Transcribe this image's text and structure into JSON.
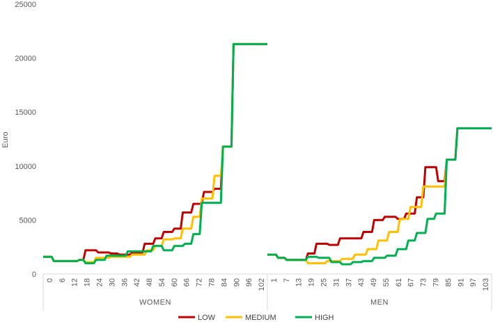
{
  "chart_data": {
    "type": "line",
    "ylabel": "Euro",
    "ylim": [
      0,
      25000
    ],
    "yticks": [
      0,
      5000,
      10000,
      15000,
      20000,
      25000
    ],
    "y_tick_labels": [
      "0",
      "5000",
      "10000",
      "15000",
      "20000",
      "25000"
    ],
    "grid": false,
    "legend_position": "bottom",
    "groups": [
      {
        "name": "WOMEN",
        "x_range": [
          0,
          106
        ],
        "x_tick_labels": [
          "0",
          "6",
          "12",
          "18",
          "24",
          "30",
          "36",
          "42",
          "48",
          "54",
          "60",
          "66",
          "72",
          "78",
          "84",
          "90",
          "96",
          "102"
        ],
        "series": [
          {
            "name": "LOW",
            "points": [
              [
                0,
                1600
              ],
              [
                4,
                1600
              ],
              [
                5,
                1200
              ],
              [
                16,
                1200
              ],
              [
                17,
                1300
              ],
              [
                19,
                1300
              ],
              [
                20,
                2200
              ],
              [
                25,
                2200
              ],
              [
                26,
                2000
              ],
              [
                31,
                2000
              ],
              [
                32,
                1900
              ],
              [
                35,
                1900
              ],
              [
                36,
                1800
              ],
              [
                41,
                1800
              ],
              [
                42,
                2000
              ],
              [
                47,
                2000
              ],
              [
                48,
                2800
              ],
              [
                52,
                2800
              ],
              [
                53,
                3300
              ],
              [
                56,
                3300
              ],
              [
                57,
                3900
              ],
              [
                61,
                3900
              ],
              [
                62,
                4200
              ],
              [
                65,
                4200
              ],
              [
                66,
                5700
              ],
              [
                70,
                5700
              ],
              [
                71,
                6500
              ],
              [
                75,
                6500
              ],
              [
                76,
                7600
              ],
              [
                80,
                7600
              ],
              [
                81,
                7900
              ],
              [
                84,
                7900
              ],
              [
                85,
                11800
              ],
              [
                89,
                11800
              ],
              [
                90,
                21300
              ],
              [
                106,
                21300
              ]
            ]
          },
          {
            "name": "MEDIUM",
            "points": [
              [
                0,
                1600
              ],
              [
                4,
                1600
              ],
              [
                5,
                1200
              ],
              [
                16,
                1200
              ],
              [
                17,
                1300
              ],
              [
                19,
                1300
              ],
              [
                20,
                1100
              ],
              [
                24,
                1100
              ],
              [
                25,
                1500
              ],
              [
                31,
                1500
              ],
              [
                32,
                1600
              ],
              [
                41,
                1600
              ],
              [
                42,
                1800
              ],
              [
                48,
                1800
              ],
              [
                49,
                2200
              ],
              [
                52,
                2200
              ],
              [
                53,
                2600
              ],
              [
                56,
                2600
              ],
              [
                57,
                3200
              ],
              [
                61,
                3200
              ],
              [
                62,
                3300
              ],
              [
                65,
                3300
              ],
              [
                66,
                4200
              ],
              [
                70,
                4200
              ],
              [
                71,
                5300
              ],
              [
                74,
                5300
              ],
              [
                75,
                7000
              ],
              [
                80,
                7000
              ],
              [
                81,
                9100
              ],
              [
                84,
                9100
              ],
              [
                85,
                11800
              ],
              [
                89,
                11800
              ],
              [
                90,
                21300
              ],
              [
                106,
                21300
              ]
            ]
          },
          {
            "name": "HIGH",
            "points": [
              [
                0,
                1600
              ],
              [
                4,
                1600
              ],
              [
                5,
                1200
              ],
              [
                16,
                1200
              ],
              [
                17,
                1300
              ],
              [
                19,
                1300
              ],
              [
                20,
                1000
              ],
              [
                24,
                1000
              ],
              [
                25,
                1300
              ],
              [
                29,
                1300
              ],
              [
                30,
                1700
              ],
              [
                34,
                1700
              ],
              [
                35,
                1700
              ],
              [
                39,
                1700
              ],
              [
                40,
                2100
              ],
              [
                46,
                2100
              ],
              [
                47,
                2100
              ],
              [
                51,
                2100
              ],
              [
                52,
                2600
              ],
              [
                56,
                2600
              ],
              [
                57,
                2200
              ],
              [
                61,
                2200
              ],
              [
                62,
                2600
              ],
              [
                66,
                2600
              ],
              [
                67,
                2800
              ],
              [
                70,
                2800
              ],
              [
                71,
                3700
              ],
              [
                74,
                3700
              ],
              [
                75,
                6600
              ],
              [
                80,
                6600
              ],
              [
                81,
                6600
              ],
              [
                84,
                6600
              ],
              [
                85,
                11800
              ],
              [
                89,
                11800
              ],
              [
                90,
                21300
              ],
              [
                106,
                21300
              ]
            ]
          }
        ]
      },
      {
        "name": "MEN",
        "x_range": [
          0,
          105
        ],
        "x_tick_labels": [
          "1",
          "7",
          "13",
          "19",
          "25",
          "31",
          "37",
          "43",
          "49",
          "55",
          "61",
          "67",
          "73",
          "79",
          "85",
          "91",
          "97",
          "103"
        ],
        "series": [
          {
            "name": "LOW",
            "points": [
              [
                0,
                1800
              ],
              [
                4,
                1800
              ],
              [
                5,
                1500
              ],
              [
                8,
                1500
              ],
              [
                9,
                1300
              ],
              [
                18,
                1300
              ],
              [
                19,
                1900
              ],
              [
                22,
                1900
              ],
              [
                23,
                2800
              ],
              [
                28,
                2800
              ],
              [
                29,
                2700
              ],
              [
                33,
                2700
              ],
              [
                34,
                3300
              ],
              [
                39,
                3300
              ],
              [
                40,
                3300
              ],
              [
                44,
                3300
              ],
              [
                45,
                3900
              ],
              [
                49,
                3900
              ],
              [
                50,
                5000
              ],
              [
                54,
                5000
              ],
              [
                55,
                5300
              ],
              [
                60,
                5300
              ],
              [
                61,
                5100
              ],
              [
                64,
                5100
              ],
              [
                65,
                5600
              ],
              [
                69,
                5600
              ],
              [
                70,
                7100
              ],
              [
                73,
                7100
              ],
              [
                74,
                9900
              ],
              [
                79,
                9900
              ],
              [
                80,
                8600
              ],
              [
                83,
                8600
              ],
              [
                84,
                10600
              ],
              [
                88,
                10600
              ],
              [
                89,
                13500
              ],
              [
                105,
                13500
              ]
            ]
          },
          {
            "name": "MEDIUM",
            "points": [
              [
                0,
                1800
              ],
              [
                4,
                1800
              ],
              [
                5,
                1500
              ],
              [
                8,
                1500
              ],
              [
                9,
                1300
              ],
              [
                18,
                1300
              ],
              [
                19,
                1000
              ],
              [
                27,
                1000
              ],
              [
                28,
                1200
              ],
              [
                34,
                1200
              ],
              [
                35,
                1400
              ],
              [
                40,
                1400
              ],
              [
                41,
                1800
              ],
              [
                46,
                1800
              ],
              [
                47,
                2300
              ],
              [
                51,
                2300
              ],
              [
                52,
                3100
              ],
              [
                56,
                3100
              ],
              [
                57,
                3900
              ],
              [
                61,
                3900
              ],
              [
                62,
                5100
              ],
              [
                66,
                5100
              ],
              [
                67,
                6200
              ],
              [
                72,
                6200
              ],
              [
                73,
                8100
              ],
              [
                78,
                8100
              ],
              [
                79,
                8100
              ],
              [
                83,
                8100
              ],
              [
                84,
                10600
              ],
              [
                88,
                10600
              ],
              [
                89,
                13500
              ],
              [
                105,
                13500
              ]
            ]
          },
          {
            "name": "HIGH",
            "points": [
              [
                0,
                1800
              ],
              [
                4,
                1800
              ],
              [
                5,
                1500
              ],
              [
                8,
                1500
              ],
              [
                9,
                1300
              ],
              [
                18,
                1300
              ],
              [
                19,
                1600
              ],
              [
                23,
                1600
              ],
              [
                24,
                1500
              ],
              [
                29,
                1500
              ],
              [
                30,
                1100
              ],
              [
                34,
                1100
              ],
              [
                35,
                900
              ],
              [
                39,
                900
              ],
              [
                40,
                1100
              ],
              [
                44,
                1100
              ],
              [
                45,
                1200
              ],
              [
                49,
                1200
              ],
              [
                50,
                1500
              ],
              [
                55,
                1500
              ],
              [
                56,
                1700
              ],
              [
                60,
                1700
              ],
              [
                61,
                2300
              ],
              [
                65,
                2300
              ],
              [
                66,
                3100
              ],
              [
                69,
                3100
              ],
              [
                70,
                3800
              ],
              [
                74,
                3800
              ],
              [
                75,
                5100
              ],
              [
                78,
                5100
              ],
              [
                79,
                5600
              ],
              [
                83,
                5600
              ],
              [
                84,
                10600
              ],
              [
                88,
                10600
              ],
              [
                89,
                13500
              ],
              [
                105,
                13500
              ]
            ]
          }
        ]
      }
    ],
    "legend": [
      {
        "name": "LOW",
        "color": "#C00000"
      },
      {
        "name": "MEDIUM",
        "color": "#FFC000"
      },
      {
        "name": "HIGH",
        "color": "#00B050"
      }
    ]
  }
}
